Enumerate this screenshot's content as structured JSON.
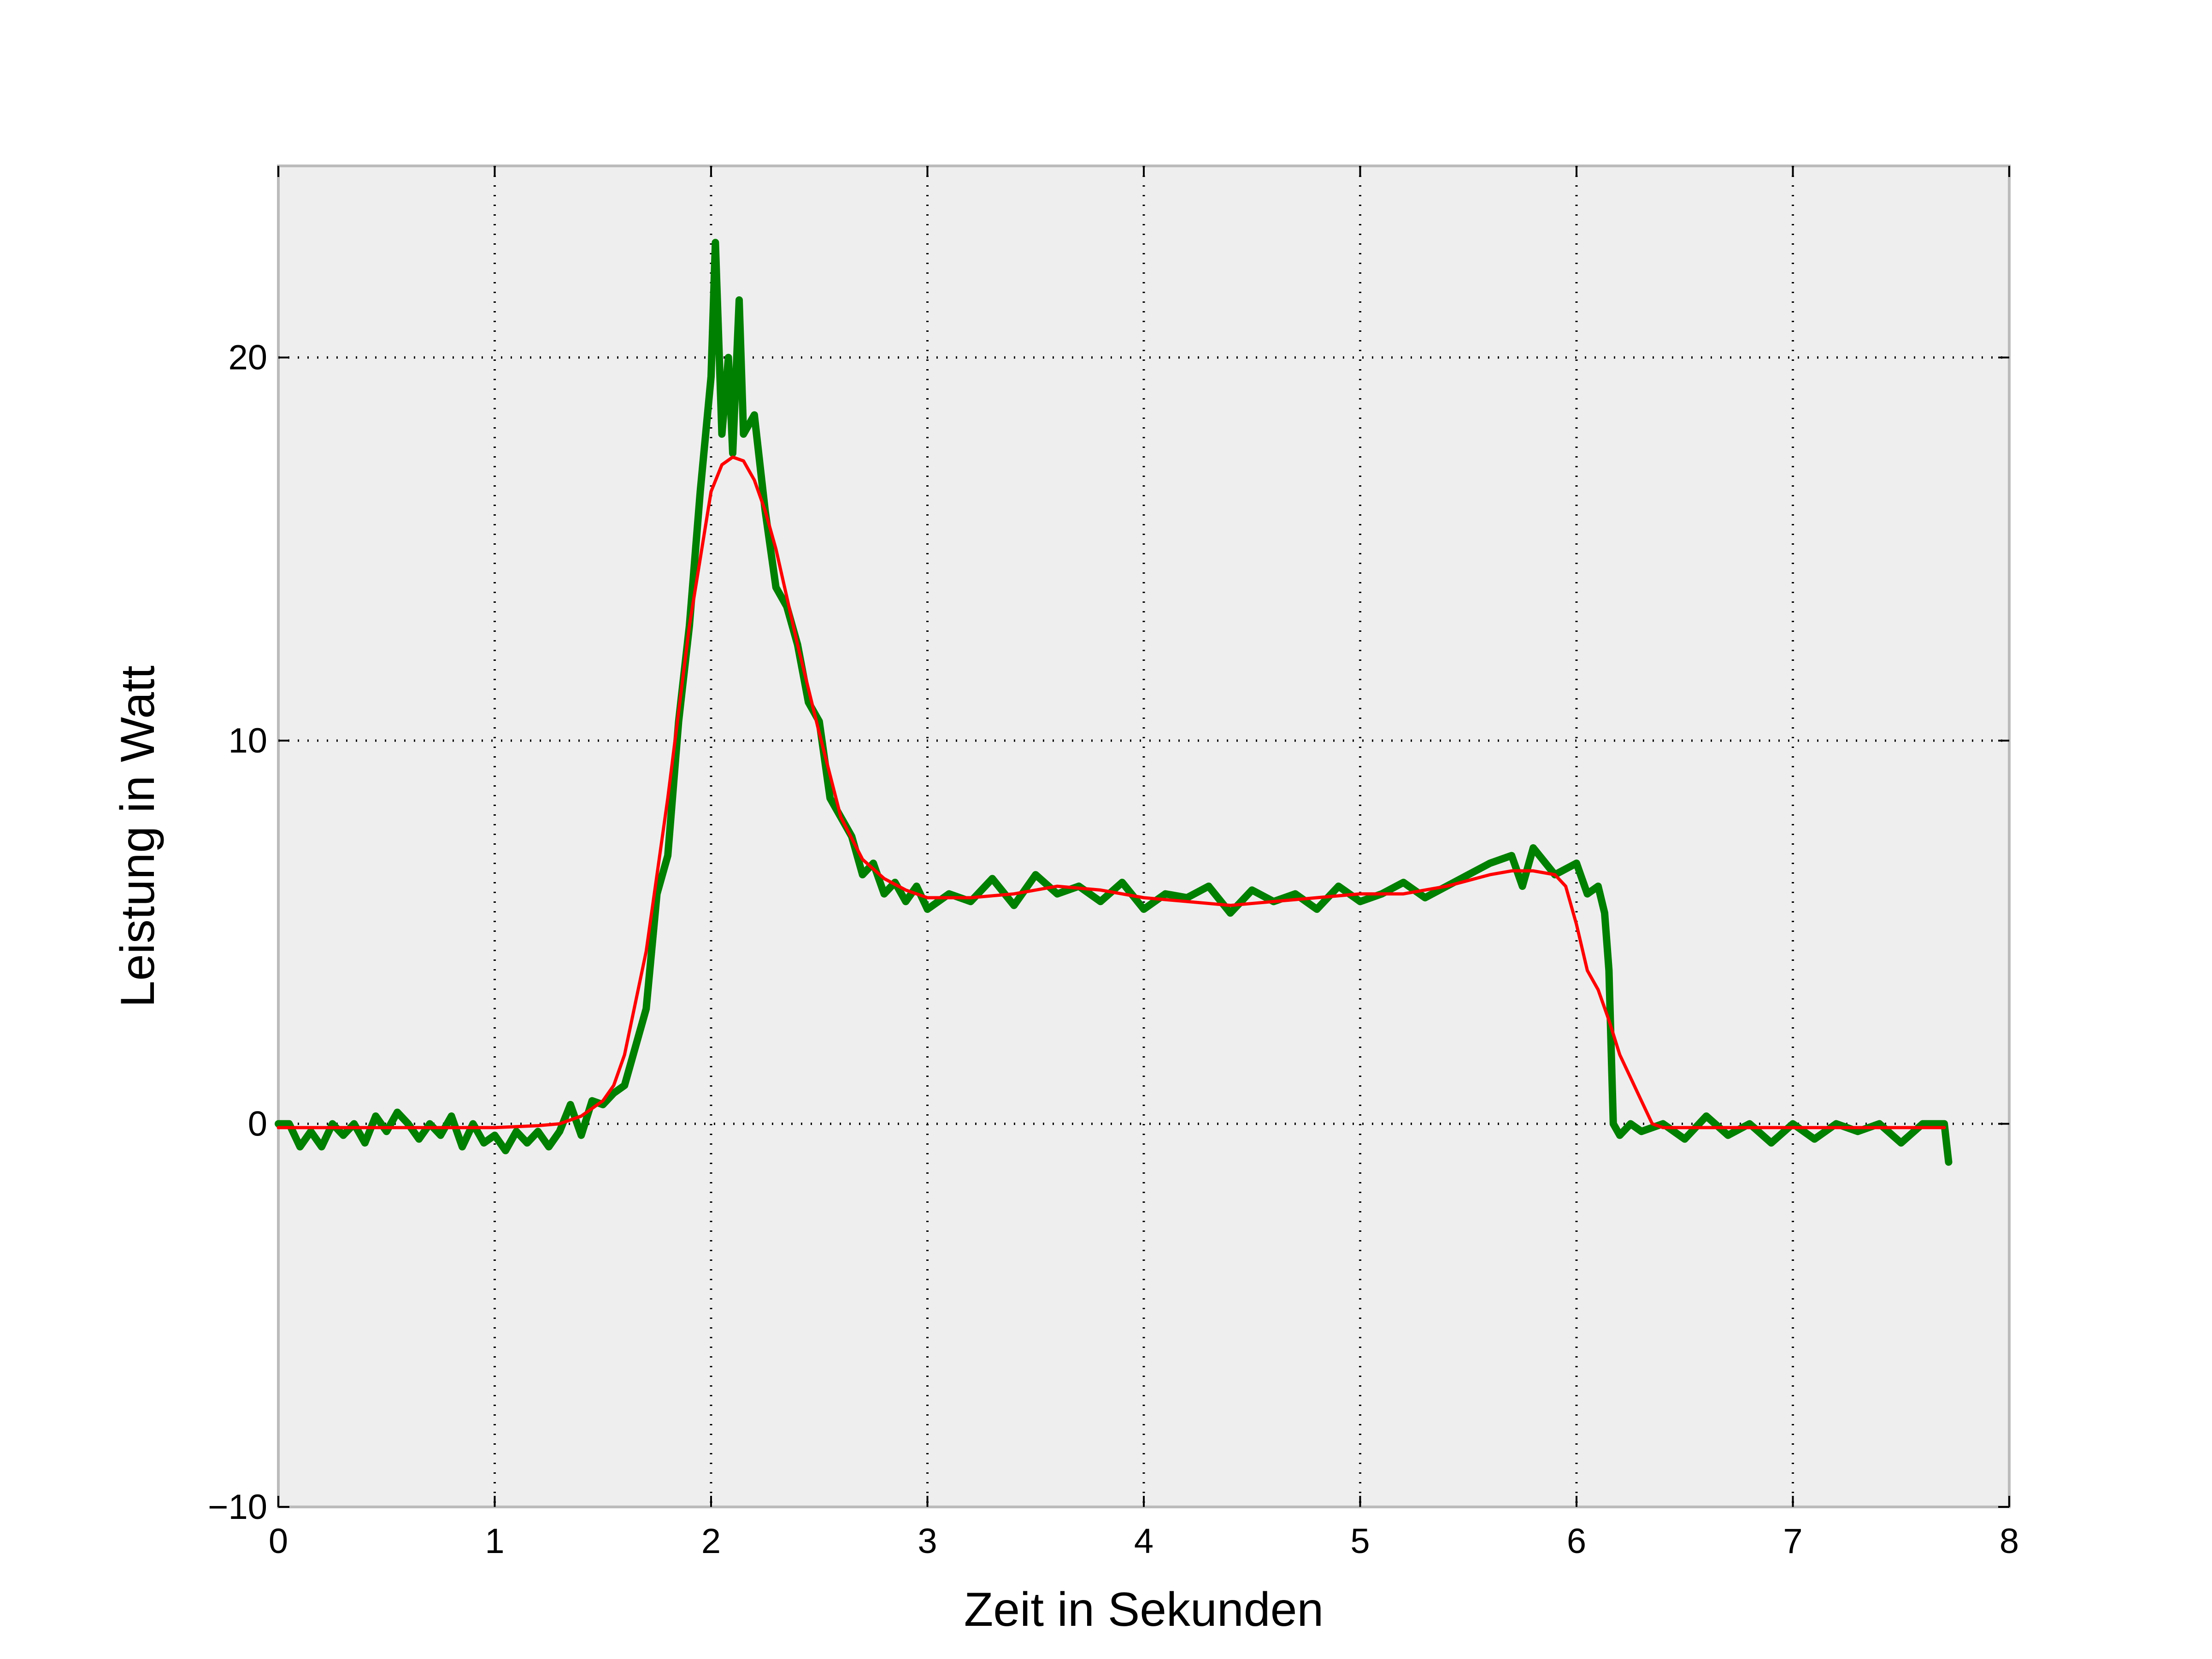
{
  "chart_data": {
    "type": "line",
    "title": "",
    "xlabel": "Zeit in Sekunden",
    "ylabel": "Leistung in Watt",
    "xlim": [
      0,
      8
    ],
    "ylim": [
      -10,
      25
    ],
    "x_ticks": [
      0,
      1,
      2,
      3,
      4,
      5,
      6,
      7,
      8
    ],
    "x_tick_labels": [
      "0",
      "1",
      "2",
      "3",
      "4",
      "5",
      "6",
      "7",
      "8"
    ],
    "y_ticks": [
      -10,
      0,
      10,
      20
    ],
    "y_tick_labels": [
      "−10",
      "0",
      "10",
      "20"
    ],
    "grid": true,
    "background_color": "#eeeeee",
    "series": [
      {
        "color": "#008000",
        "style": "noisy-measurement",
        "x": [
          0.0,
          0.05,
          0.1,
          0.15,
          0.2,
          0.25,
          0.3,
          0.35,
          0.4,
          0.45,
          0.5,
          0.55,
          0.6,
          0.65,
          0.7,
          0.75,
          0.8,
          0.85,
          0.9,
          0.95,
          1.0,
          1.05,
          1.1,
          1.15,
          1.2,
          1.25,
          1.3,
          1.35,
          1.4,
          1.45,
          1.5,
          1.55,
          1.6,
          1.65,
          1.7,
          1.75,
          1.8,
          1.85,
          1.9,
          1.95,
          2.0,
          2.02,
          2.05,
          2.08,
          2.1,
          2.13,
          2.15,
          2.2,
          2.25,
          2.3,
          2.35,
          2.4,
          2.45,
          2.5,
          2.55,
          2.6,
          2.65,
          2.7,
          2.75,
          2.8,
          2.85,
          2.9,
          2.95,
          3.0,
          3.1,
          3.2,
          3.3,
          3.4,
          3.5,
          3.6,
          3.7,
          3.8,
          3.9,
          4.0,
          4.1,
          4.2,
          4.3,
          4.4,
          4.5,
          4.6,
          4.7,
          4.8,
          4.9,
          5.0,
          5.1,
          5.2,
          5.3,
          5.4,
          5.5,
          5.6,
          5.7,
          5.75,
          5.8,
          5.9,
          6.0,
          6.05,
          6.1,
          6.13,
          6.15,
          6.17,
          6.2,
          6.25,
          6.3,
          6.4,
          6.5,
          6.6,
          6.7,
          6.8,
          6.9,
          7.0,
          7.1,
          7.2,
          7.3,
          7.4,
          7.5,
          7.6,
          7.7,
          7.72
        ],
        "y": [
          0.0,
          0.0,
          -0.6,
          -0.2,
          -0.6,
          0.0,
          -0.3,
          0.0,
          -0.5,
          0.2,
          -0.2,
          0.3,
          0.0,
          -0.4,
          0.0,
          -0.3,
          0.2,
          -0.6,
          0.0,
          -0.5,
          -0.3,
          -0.7,
          -0.2,
          -0.5,
          -0.2,
          -0.6,
          -0.2,
          0.5,
          -0.3,
          0.6,
          0.5,
          0.8,
          1.0,
          2.0,
          3.0,
          6.0,
          7.0,
          10.5,
          13.0,
          16.5,
          19.5,
          23.0,
          18.0,
          20.0,
          17.5,
          21.5,
          18.0,
          18.5,
          16.0,
          14.0,
          13.5,
          12.5,
          11.0,
          10.5,
          8.5,
          8.0,
          7.5,
          6.5,
          6.8,
          6.0,
          6.3,
          5.8,
          6.2,
          5.6,
          6.0,
          5.8,
          6.4,
          5.7,
          6.5,
          6.0,
          6.2,
          5.8,
          6.3,
          5.6,
          6.0,
          5.9,
          6.2,
          5.5,
          6.1,
          5.8,
          6.0,
          5.6,
          6.2,
          5.8,
          6.0,
          6.3,
          5.9,
          6.2,
          6.5,
          6.8,
          7.0,
          6.2,
          7.2,
          6.5,
          6.8,
          6.0,
          6.2,
          5.5,
          4.0,
          0.0,
          -0.3,
          0.0,
          -0.2,
          0.0,
          -0.4,
          0.2,
          -0.3,
          0.0,
          -0.5,
          0.0,
          -0.4,
          0.0,
          -0.2,
          0.0,
          -0.5,
          0.0,
          0.0,
          -1.0
        ]
      },
      {
        "color": "#ff0000",
        "style": "smoothed",
        "x": [
          0.0,
          0.5,
          1.0,
          1.2,
          1.3,
          1.4,
          1.5,
          1.55,
          1.6,
          1.7,
          1.8,
          1.9,
          2.0,
          2.05,
          2.1,
          2.15,
          2.2,
          2.25,
          2.3,
          2.4,
          2.5,
          2.6,
          2.7,
          2.8,
          2.9,
          3.0,
          3.2,
          3.4,
          3.6,
          3.8,
          4.0,
          4.2,
          4.4,
          4.6,
          4.8,
          5.0,
          5.2,
          5.4,
          5.6,
          5.7,
          5.8,
          5.9,
          5.95,
          6.0,
          6.05,
          6.1,
          6.15,
          6.2,
          6.25,
          6.3,
          6.35,
          6.4,
          6.6,
          6.8,
          7.0,
          7.2,
          7.4,
          7.6,
          7.7
        ],
        "y": [
          -0.1,
          -0.1,
          -0.1,
          -0.05,
          0.0,
          0.2,
          0.6,
          1.0,
          1.8,
          4.5,
          8.5,
          13.0,
          16.5,
          17.2,
          17.4,
          17.3,
          16.8,
          16.0,
          15.0,
          12.5,
          10.2,
          8.0,
          6.9,
          6.4,
          6.1,
          5.9,
          5.9,
          6.0,
          6.2,
          6.1,
          5.9,
          5.8,
          5.7,
          5.8,
          5.9,
          6.0,
          6.0,
          6.2,
          6.5,
          6.6,
          6.6,
          6.5,
          6.2,
          5.2,
          4.0,
          3.5,
          2.7,
          1.8,
          1.2,
          0.6,
          0.0,
          -0.1,
          -0.1,
          -0.1,
          -0.1,
          -0.1,
          -0.1,
          -0.1,
          -0.1
        ]
      }
    ]
  }
}
